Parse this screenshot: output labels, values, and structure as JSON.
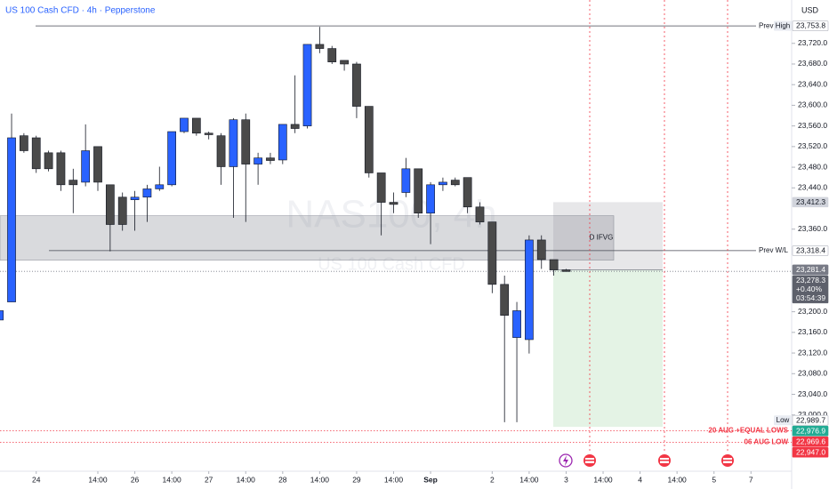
{
  "chart_data": {
    "type": "candlestick",
    "title": "US 100 Cash CFD · 4h · Pepperstone",
    "currency": "USD",
    "watermark": {
      "symbol": "NAS100, 4h",
      "description": "US 100 Cash CFD"
    },
    "x": [
      -1,
      0,
      1,
      2,
      3,
      4,
      5,
      6,
      7,
      8,
      9,
      10,
      11,
      12,
      13,
      14,
      15,
      16,
      17,
      18,
      19,
      20,
      21,
      22,
      23,
      24,
      25,
      26,
      27,
      28,
      29,
      30,
      31,
      32,
      33,
      34,
      35,
      36,
      37,
      38,
      39,
      40,
      41,
      42,
      43,
      44,
      45
    ],
    "open": [
      23184,
      23219,
      23541,
      23537,
      23508,
      23508,
      23455,
      23451,
      23520,
      23446,
      23422,
      23417,
      23422,
      23438,
      23446,
      23549,
      23575,
      23546,
      23541,
      23481,
      23572,
      23486,
      23498,
      23494,
      23563,
      23560,
      23718,
      23710,
      23687,
      23680,
      23598,
      23469,
      23412,
      23431,
      23477,
      23391,
      23446,
      23455,
      23460,
      23403,
      23374,
      23253,
      23150,
      23146,
      23339,
      23301,
      23281
    ],
    "high": [
      23339,
      23584,
      23546,
      23541,
      23512,
      23512,
      23477,
      23563,
      23520,
      23446,
      23431,
      23434,
      23446,
      23481,
      23549,
      23575,
      23575,
      23549,
      23546,
      23575,
      23584,
      23508,
      23508,
      23563,
      23658,
      23718,
      23752,
      23715,
      23687,
      23684,
      23598,
      23469,
      23431,
      23498,
      23477,
      23451,
      23460,
      23460,
      23460,
      23412,
      23374,
      23270,
      23219,
      23348,
      23348,
      23301,
      23283
    ],
    "low": [
      23184,
      23219,
      23508,
      23469,
      23472,
      23434,
      23391,
      23443,
      23434,
      23317,
      23357,
      23357,
      23374,
      23434,
      23443,
      23546,
      23541,
      23534,
      23446,
      23382,
      23374,
      23446,
      23486,
      23486,
      23546,
      23555,
      23701,
      23680,
      23667,
      23575,
      23460,
      23348,
      23391,
      23422,
      23382,
      23331,
      23434,
      23443,
      23391,
      23369,
      23236,
      22986,
      22986,
      23119,
      23283,
      23270,
      23278
    ],
    "close": [
      23202,
      23537,
      23512,
      23477,
      23477,
      23446,
      23446,
      23512,
      23451,
      23369,
      23369,
      23422,
      23438,
      23446,
      23549,
      23575,
      23546,
      23543,
      23481,
      23572,
      23486,
      23498,
      23493,
      23563,
      23555,
      23718,
      23710,
      23684,
      23680,
      23598,
      23469,
      23412,
      23408,
      23477,
      23391,
      23446,
      23451,
      23446,
      23403,
      23374,
      23253,
      23193,
      23202,
      23339,
      23301,
      23281,
      23278
    ],
    "up_color": "#2962ff",
    "down_color": "#4a4a4a",
    "xlim": [
      -0.94,
      63.3
    ],
    "xticks": [
      {
        "value": 2,
        "label": "24"
      },
      {
        "value": 7,
        "label": "14:00"
      },
      {
        "value": 10,
        "label": "26"
      },
      {
        "value": 13,
        "label": "14:00"
      },
      {
        "value": 16,
        "label": "27"
      },
      {
        "value": 19,
        "label": "14:00"
      },
      {
        "value": 22,
        "label": "28"
      },
      {
        "value": 25,
        "label": "14:00"
      },
      {
        "value": 28,
        "label": "29"
      },
      {
        "value": 31,
        "label": "14:00"
      },
      {
        "value": 34,
        "label": "Sep"
      },
      {
        "value": 39,
        "label": "2"
      },
      {
        "value": 42,
        "label": "14:00"
      },
      {
        "value": 45,
        "label": "3"
      },
      {
        "value": 48,
        "label": "14:00"
      },
      {
        "value": 51,
        "label": "4"
      },
      {
        "value": 54,
        "label": "14:00"
      },
      {
        "value": 57,
        "label": "5"
      },
      {
        "value": 60,
        "label": "7"
      }
    ],
    "ylim": [
      22891,
      23804
    ],
    "yticks": [
      {
        "value": 23720,
        "label": "23,720.0"
      },
      {
        "value": 23680,
        "label": "23,680.0"
      },
      {
        "value": 23640,
        "label": "23,640.0"
      },
      {
        "value": 23600,
        "label": "23,600.0"
      },
      {
        "value": 23560,
        "label": "23,560.0"
      },
      {
        "value": 23520,
        "label": "23,520.0"
      },
      {
        "value": 23480,
        "label": "23,480.0"
      },
      {
        "value": 23440,
        "label": "23,440.0"
      },
      {
        "value": 23360,
        "label": "23,360.0"
      },
      {
        "value": 23200,
        "label": "23,200.0"
      },
      {
        "value": 23160,
        "label": "23,160.0"
      },
      {
        "value": 23120,
        "label": "23,120.0"
      },
      {
        "value": 23080,
        "label": "23,080.0"
      },
      {
        "value": 23040,
        "label": "23,040.0"
      },
      {
        "value": 23000,
        "label": "23,000.0"
      }
    ],
    "grid": false,
    "lines": [
      {
        "label": "Prev High",
        "value": 23753.8,
        "color": "#434651"
      },
      {
        "label": "Prev W/L",
        "value": 23318.4,
        "color": "#434651"
      },
      {
        "label": "20 AUG +EQUAL LOWS",
        "value": 22969.6,
        "color": "#f23645"
      },
      {
        "label": "06 AUG LOW",
        "value": 22947.0,
        "color": "#f23645"
      }
    ],
    "zone": {
      "label": "D IFVG",
      "low": 23300,
      "high": 23386
    },
    "position": {
      "stop": 23412.3,
      "entry": 23281.4,
      "target": 22976.9
    },
    "price_tags": [
      {
        "value": 23753.8,
        "label": "23,753.8",
        "tag": "High",
        "color": "#ffffff"
      },
      {
        "value": 23412.3,
        "label": "23,412.3",
        "color": "#d1d4dc"
      },
      {
        "value": 23318.4,
        "label": "23,318.4",
        "color": "#ffffff"
      },
      {
        "value": 23281.4,
        "label": "23,281.4",
        "color": "#787b86"
      },
      {
        "value": 23278.3,
        "label": "23,278.3",
        "change": "+0.40%",
        "countdown": "03:54:39",
        "color": "#5d606b"
      },
      {
        "value": 22989.7,
        "label": "22,989.7",
        "tag": "Low",
        "color": "#ffffff"
      },
      {
        "value": 22976.9,
        "label": "22,976.9",
        "color": "#22ab94"
      },
      {
        "value": 22969.6,
        "label": "22,969.6",
        "color": "#f23645"
      },
      {
        "value": 22947.0,
        "label": "22,947.0",
        "color": "#f23645"
      }
    ]
  }
}
